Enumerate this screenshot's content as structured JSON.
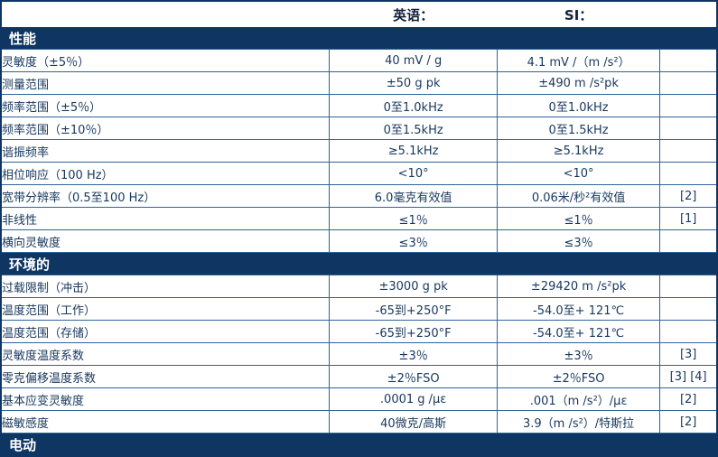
{
  "header": {
    "english_col": "英语：",
    "si_col": "SI："
  },
  "colors": {
    "section_bar": "#0f3562",
    "grid_line": "#2f6399",
    "body_text": "#17375e",
    "header_text": "#14213d",
    "background": "#ffffff",
    "bottom_strip": "#cdcfcf"
  },
  "sections": [
    {
      "title": "性能",
      "rows": [
        {
          "label": "灵敏度（±5％）",
          "english": "40 mV / g",
          "si": "4.1 mV /（m /s²）",
          "note": ""
        },
        {
          "label": "测量范围",
          "english": "±50 g pk",
          "si": "±490 m /s²pk",
          "note": ""
        },
        {
          "label": "频率范围（±5％）",
          "english": "0至1.0kHz",
          "si": "0至1.0kHz",
          "note": ""
        },
        {
          "label": "频率范围（±10％）",
          "english": "0至1.5kHz",
          "si": "0至1.5kHz",
          "note": ""
        },
        {
          "label": "谐振频率",
          "english": "≥5.1kHz",
          "si": "≥5.1kHz",
          "note": ""
        },
        {
          "label": "相位响应（100 Hz）",
          "english": "<10°",
          "si": "<10°",
          "note": ""
        },
        {
          "label": "宽带分辨率（0.5至100 Hz）",
          "english": "6.0毫克有效值",
          "si": "0.06米/秒²有效值",
          "note": "[2]"
        },
        {
          "label": "非线性",
          "english": "≤1％",
          "si": "≤1％",
          "note": "[1]"
        },
        {
          "label": "横向灵敏度",
          "english": "≤3％",
          "si": "≤3％",
          "note": ""
        }
      ]
    },
    {
      "title": "环境的",
      "rows": [
        {
          "label": "过载限制（冲击）",
          "english": "±3000 g pk",
          "si": "±29420 m /s²pk",
          "note": ""
        },
        {
          "label": "温度范围（工作）",
          "english": "-65到+250°F",
          "si": "-54.0至+ 121℃",
          "note": ""
        },
        {
          "label": "温度范围（存储）",
          "english": "-65到+250°F",
          "si": "-54.0至+ 121℃",
          "note": ""
        },
        {
          "label": "灵敏度温度系数",
          "english": "±3％",
          "si": "±3％",
          "note": "[3]"
        },
        {
          "label": "零克偏移温度系数",
          "english": "±2％FSO",
          "si": "±2％FSO",
          "note": "[3] [4]"
        },
        {
          "label": "基本应变灵敏度",
          "english": ".0001 g /με",
          "si": ".001（m /s²）/με",
          "note": "[2]"
        },
        {
          "label": "磁敏感度",
          "english": "40微克/高斯",
          "si": "3.9（m /s²）/特斯拉",
          "note": "[2]"
        }
      ]
    },
    {
      "title": "电动",
      "rows": []
    }
  ]
}
